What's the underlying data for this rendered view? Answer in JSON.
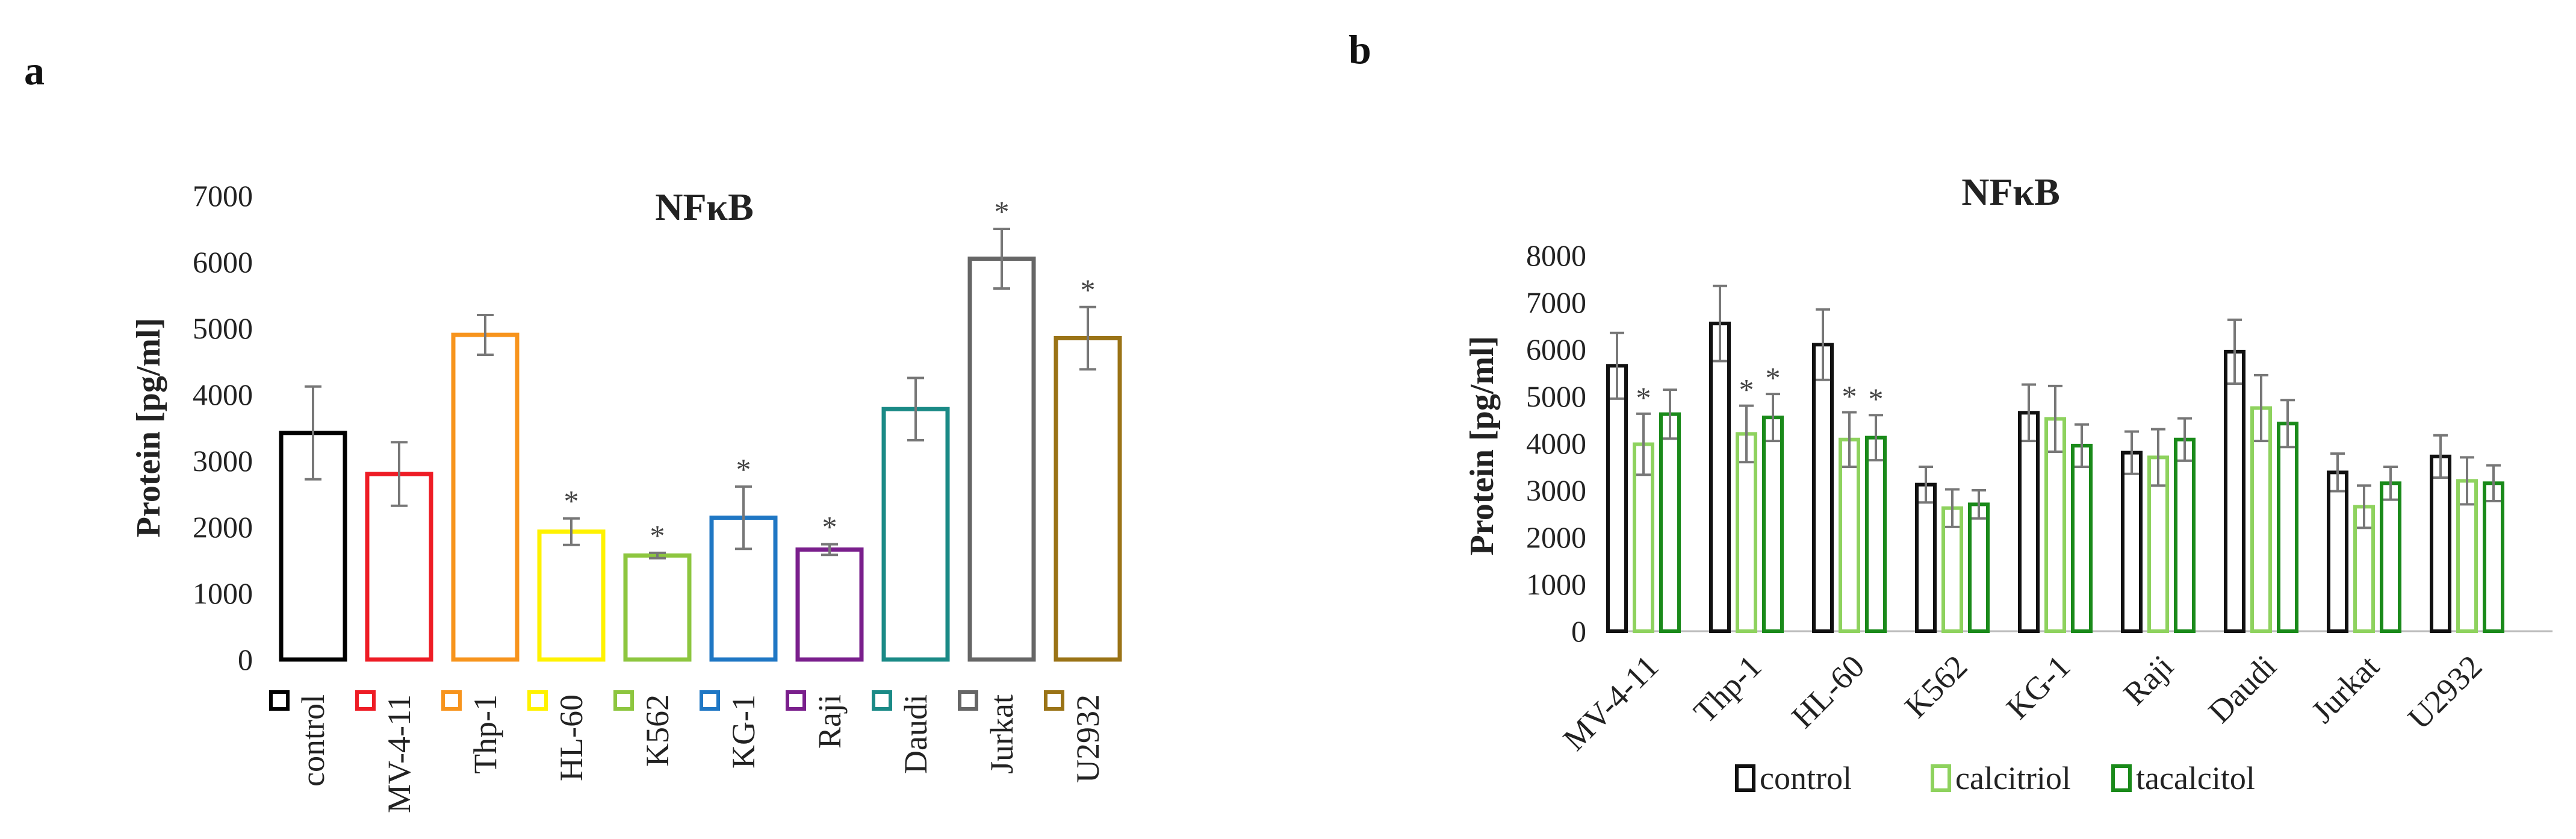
{
  "panel_labels": [
    "a",
    "b"
  ],
  "chart_data": [
    {
      "id": "a",
      "type": "bar",
      "title": "NFκB",
      "ylabel": "Protein [pg/ml]",
      "xlabel": "",
      "ylim": [
        0,
        7000
      ],
      "yticks": [
        0,
        1000,
        2000,
        3000,
        4000,
        5000,
        6000,
        7000
      ],
      "categories": [
        "control",
        "MV-4-11",
        "Thp-1",
        "HL-60",
        "K562",
        "KG-1",
        "Raji",
        "Daudi",
        "Jurkat",
        "U2932"
      ],
      "values": [
        3420,
        2800,
        4900,
        1930,
        1570,
        2140,
        1660,
        3780,
        6050,
        4850
      ],
      "errors": [
        700,
        480,
        300,
        200,
        40,
        470,
        80,
        470,
        450,
        470
      ],
      "significant": [
        false,
        false,
        false,
        true,
        true,
        true,
        true,
        false,
        true,
        true
      ],
      "significance_mark": "*",
      "colors": [
        "#000000",
        "#ee1c25",
        "#f7941d",
        "#fff200",
        "#8dc63f",
        "#1f77c4",
        "#7a1f8c",
        "#1a8a86",
        "#666666",
        "#9a7316"
      ],
      "legend": "below-axis"
    },
    {
      "id": "b",
      "type": "bar",
      "title": "NFκB",
      "ylabel": "Protein [pg/ml]",
      "xlabel": "",
      "ylim": [
        0,
        8000
      ],
      "yticks": [
        0,
        1000,
        2000,
        3000,
        4000,
        5000,
        6000,
        7000,
        8000
      ],
      "categories": [
        "MV-4-11",
        "Thp-1",
        "HL-60",
        "K562",
        "KG-1",
        "Raji",
        "Daudi",
        "Jurkat",
        "U2932"
      ],
      "series": [
        {
          "name": "control",
          "color": "#111111",
          "values": [
            5650,
            6550,
            6100,
            3120,
            4650,
            3800,
            5950,
            3380,
            3720
          ],
          "errors": [
            700,
            800,
            750,
            380,
            600,
            450,
            680,
            400,
            450
          ],
          "significant": [
            false,
            false,
            false,
            false,
            false,
            false,
            false,
            false,
            false
          ]
        },
        {
          "name": "calcitriol",
          "color": "#8ed25e",
          "values": [
            3980,
            4200,
            4080,
            2620,
            4520,
            3700,
            4750,
            2650,
            3200
          ],
          "errors": [
            650,
            600,
            580,
            400,
            700,
            600,
            700,
            450,
            500
          ],
          "significant": [
            true,
            true,
            true,
            false,
            false,
            false,
            false,
            false,
            false
          ]
        },
        {
          "name": "tacalcitol",
          "color": "#1a8a1a",
          "values": [
            4620,
            4550,
            4120,
            2700,
            3950,
            4080,
            4420,
            3150,
            3150
          ],
          "errors": [
            520,
            500,
            480,
            300,
            450,
            450,
            500,
            350,
            380
          ],
          "significant": [
            false,
            true,
            true,
            false,
            false,
            false,
            false,
            false,
            false
          ]
        }
      ],
      "significance_mark": "*",
      "legend": "bottom"
    }
  ]
}
